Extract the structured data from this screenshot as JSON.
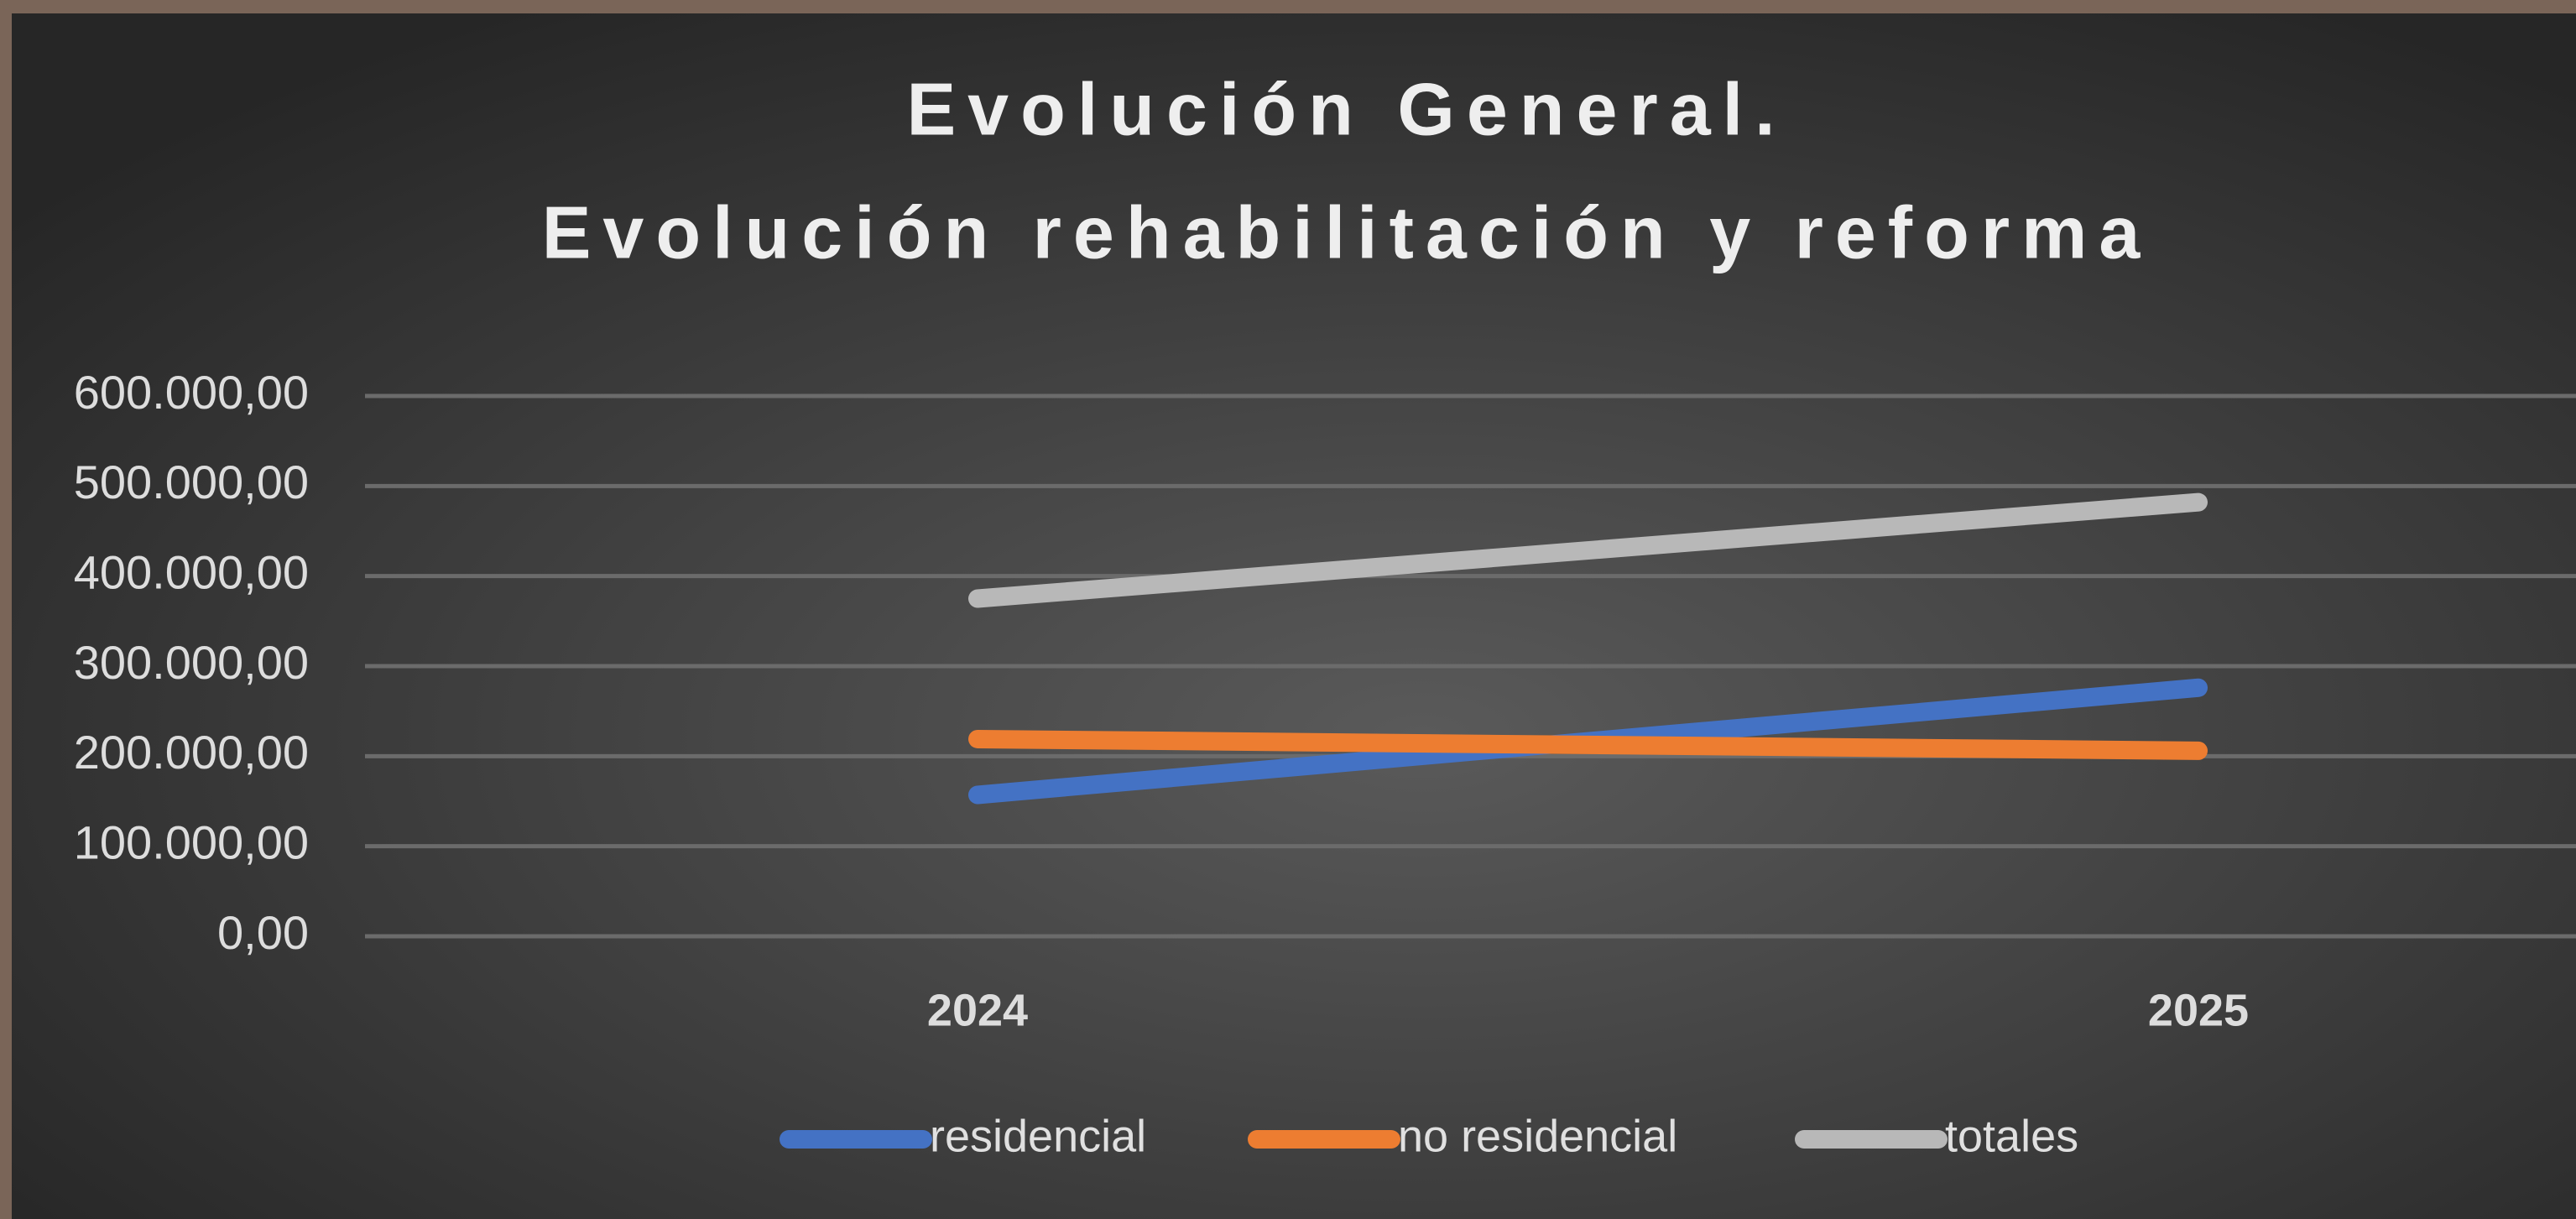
{
  "chart_data": {
    "type": "line",
    "title": "Evolución General.",
    "subtitle": "Evolución rehabilitación y reforma",
    "categories": [
      "2024",
      "2025"
    ],
    "series": [
      {
        "name": "residencial",
        "color": "#4472c4",
        "values": [
          157000,
          276000
        ]
      },
      {
        "name": "no residencial",
        "color": "#ed7d31",
        "values": [
          219000,
          206000
        ]
      },
      {
        "name": "totales",
        "color": "#b8b8b8",
        "values": [
          375000,
          482000
        ]
      }
    ],
    "ylim": [
      0,
      600000
    ],
    "yticks": [
      {
        "value": 0,
        "label": "0,00"
      },
      {
        "value": 100000,
        "label": "100.000,00"
      },
      {
        "value": 200000,
        "label": "200.000,00"
      },
      {
        "value": 300000,
        "label": "300.000,00"
      },
      {
        "value": 400000,
        "label": "400.000,00"
      },
      {
        "value": 500000,
        "label": "500.000,00"
      },
      {
        "value": 600000,
        "label": "600.000,00"
      }
    ],
    "grid": true,
    "legend": "bottom"
  }
}
